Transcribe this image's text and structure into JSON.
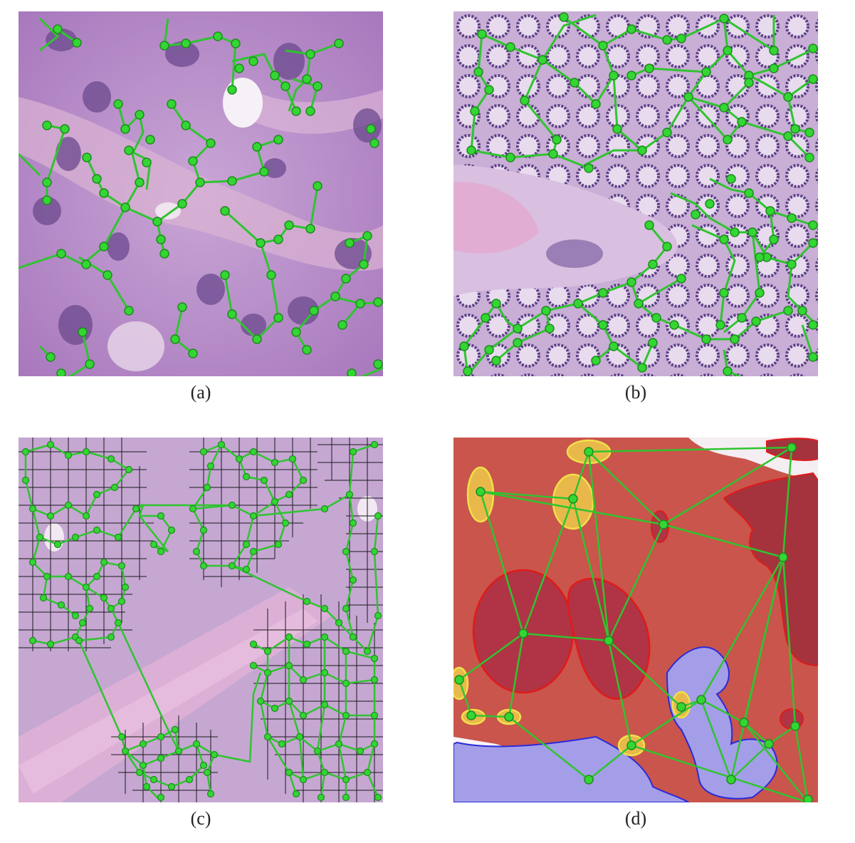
{
  "figure": {
    "panels": [
      {
        "id": "a",
        "caption": "(a)"
      },
      {
        "id": "b",
        "caption": "(b)"
      },
      {
        "id": "c",
        "caption": "(c)"
      },
      {
        "id": "d",
        "caption": "(d)"
      }
    ]
  },
  "colors": {
    "graph_edge": "#2fc42f",
    "graph_node": "#33d633",
    "node_stroke": "#1e8a1e",
    "he_purple": "#b58ac4",
    "he_pink": "#d9a7cc",
    "nuclei": "#4a2a6e",
    "tissue_red": "#c8504a",
    "tumor_dark": "#a8323f",
    "fat_blue": "#a49ee8",
    "yellow_region": "#f2d44a",
    "grid_line": "#1a1a1a"
  }
}
